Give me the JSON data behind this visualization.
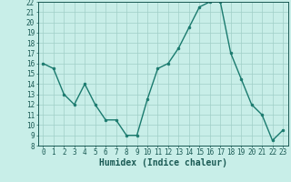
{
  "x": [
    0,
    1,
    2,
    3,
    4,
    5,
    6,
    7,
    8,
    9,
    10,
    11,
    12,
    13,
    14,
    15,
    16,
    17,
    18,
    19,
    20,
    21,
    22,
    23
  ],
  "y": [
    16,
    15.5,
    13,
    12,
    14,
    12,
    10.5,
    10.5,
    9,
    9,
    12.5,
    15.5,
    16,
    17.5,
    19.5,
    21.5,
    22,
    22,
    17,
    14.5,
    12,
    11,
    8.5,
    9.5
  ],
  "line_color": "#1a7a6e",
  "marker": "o",
  "marker_size": 2,
  "bg_color": "#c8eee8",
  "grid_color": "#a0cfc8",
  "xlabel": "Humidex (Indice chaleur)",
  "ylabel": "",
  "ylim": [
    8,
    22
  ],
  "xlim": [
    -0.5,
    23.5
  ],
  "yticks": [
    8,
    9,
    10,
    11,
    12,
    13,
    14,
    15,
    16,
    17,
    18,
    19,
    20,
    21,
    22
  ],
  "xticks": [
    0,
    1,
    2,
    3,
    4,
    5,
    6,
    7,
    8,
    9,
    10,
    11,
    12,
    13,
    14,
    15,
    16,
    17,
    18,
    19,
    20,
    21,
    22,
    23
  ],
  "tick_fontsize": 5.5,
  "xlabel_fontsize": 7,
  "linewidth": 1.0
}
